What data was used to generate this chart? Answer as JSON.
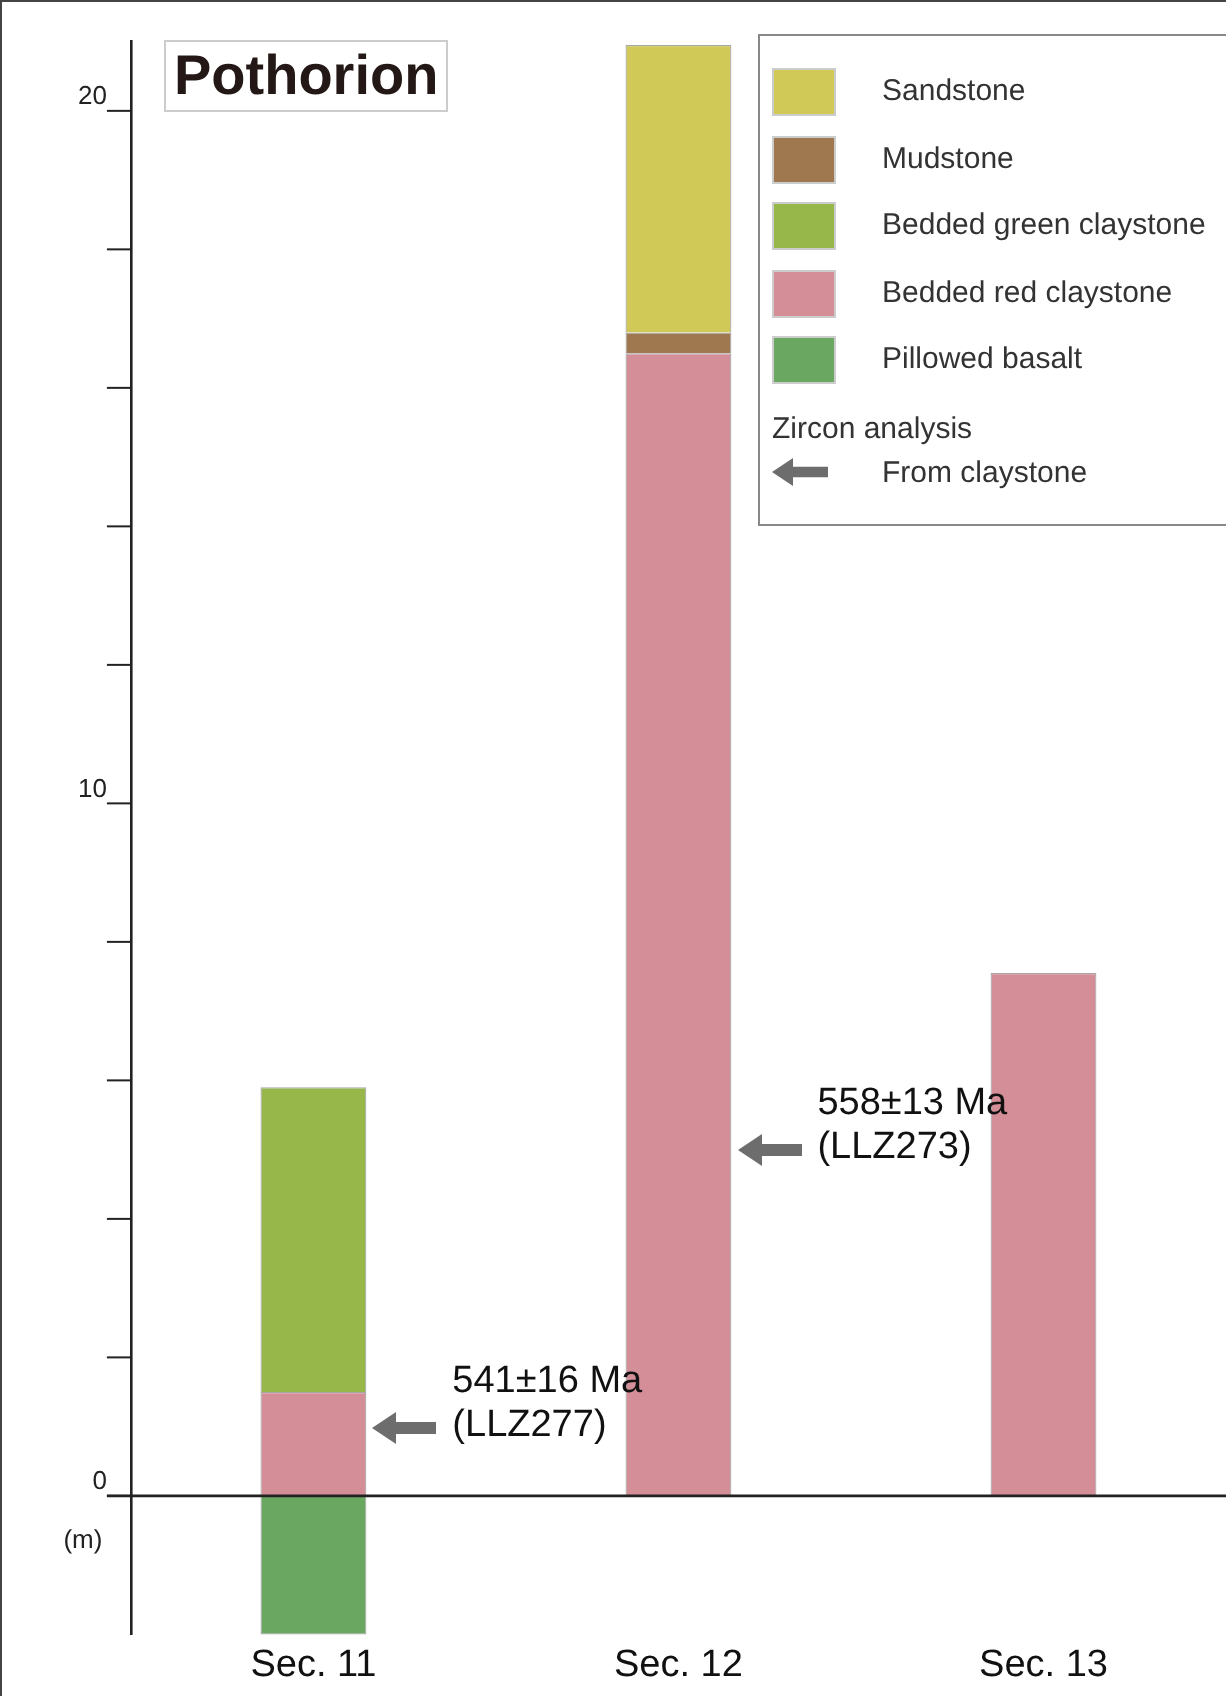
{
  "chart_data": {
    "type": "bar",
    "stacked": true,
    "title": "Pothorion",
    "ylabel": "(m)",
    "categories": [
      "Sec. 11",
      "Sec. 12",
      "Sec. 13"
    ],
    "series": [
      {
        "name": "Pillowed  basalt",
        "color": "#6aa862",
        "values": [
          -2,
          null,
          null
        ]
      },
      {
        "name": "Bedded red claystone",
        "color": "#d48e98",
        "values": [
          1.5,
          16.5,
          7.55
        ]
      },
      {
        "name": "Bedded green claystone",
        "color": "#97b74a",
        "values": [
          4.4,
          null,
          null
        ]
      },
      {
        "name": "Mudstone",
        "color": "#a07850",
        "values": [
          null,
          0.3,
          null
        ]
      },
      {
        "name": "Sandstone",
        "color": "#d0c957",
        "values": [
          null,
          4.15,
          null
        ]
      }
    ],
    "ylim": [
      -2,
      21
    ],
    "yticks": [
      0,
      {
        "value": 2,
        "label": null
      },
      {
        "value": 4,
        "label": null
      },
      {
        "value": 6,
        "label": null
      },
      {
        "value": 8,
        "label": null
      },
      10,
      {
        "value": 12,
        "label": null
      },
      {
        "value": 14,
        "label": null
      },
      {
        "value": 16,
        "label": null
      },
      {
        "value": 18,
        "label": null
      },
      20
    ],
    "ref_lines": [
      {
        "axis": "y",
        "value": 0,
        "color": "#222222"
      }
    ],
    "annotations": [
      "Zircon analysis",
      "From claystone",
      "541±16 Ma\n(LLZ277)",
      "558±13 Ma\n(LLZ273)"
    ],
    "legend": "top right",
    "grid": false
  }
}
